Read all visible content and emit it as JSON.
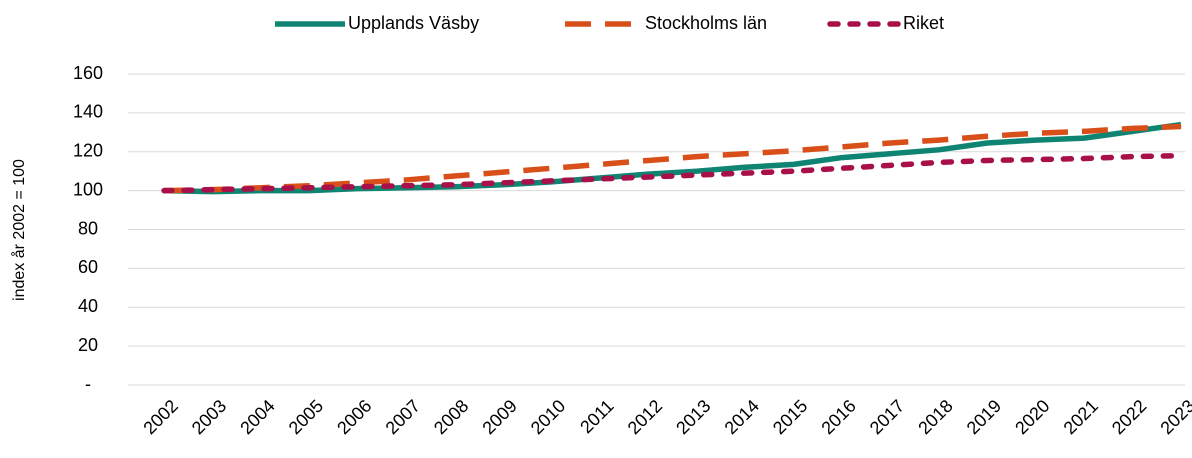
{
  "chart_data": {
    "type": "line",
    "y_label": "index år 2002 = 100",
    "categories": [
      "2002",
      "2003",
      "2004",
      "2005",
      "2006",
      "2007",
      "2008",
      "2009",
      "2010",
      "2011",
      "2012",
      "2013",
      "2014",
      "2015",
      "2016",
      "2017",
      "2018",
      "2019",
      "2020",
      "2021",
      "2022",
      "2023"
    ],
    "series": [
      {
        "name": "Upplands Väsby",
        "color": "#0f8472",
        "dash": "solid",
        "values": [
          100,
          99.5,
          100,
          100,
          101,
          101.5,
          102,
          103,
          104.5,
          106.5,
          108.5,
          110,
          112,
          113.5,
          117,
          119,
          121,
          124.5,
          126,
          127,
          130.5,
          134
        ]
      },
      {
        "name": "Stockholms län",
        "color": "#d94f1a",
        "dash": "long",
        "values": [
          100,
          100.5,
          101.5,
          102.5,
          104,
          105.5,
          107.5,
          109.5,
          111.5,
          113.5,
          115.5,
          117.5,
          119,
          120.5,
          122.5,
          124.5,
          126,
          128,
          129.5,
          130.5,
          132,
          133
        ]
      },
      {
        "name": "Riket",
        "color": "#a8104a",
        "dash": "short",
        "values": [
          100,
          100.5,
          101,
          101.5,
          102,
          102.5,
          103,
          104,
          105,
          106,
          107,
          108,
          109,
          110,
          111.5,
          113,
          114.5,
          115.5,
          116,
          116.5,
          117.5,
          118
        ]
      }
    ],
    "ylim": [
      0,
      160
    ],
    "yticks": [
      {
        "value": 0,
        "label": "-"
      },
      20,
      40,
      60,
      80,
      100,
      120,
      140,
      160
    ],
    "grid": true,
    "legend": "top"
  }
}
